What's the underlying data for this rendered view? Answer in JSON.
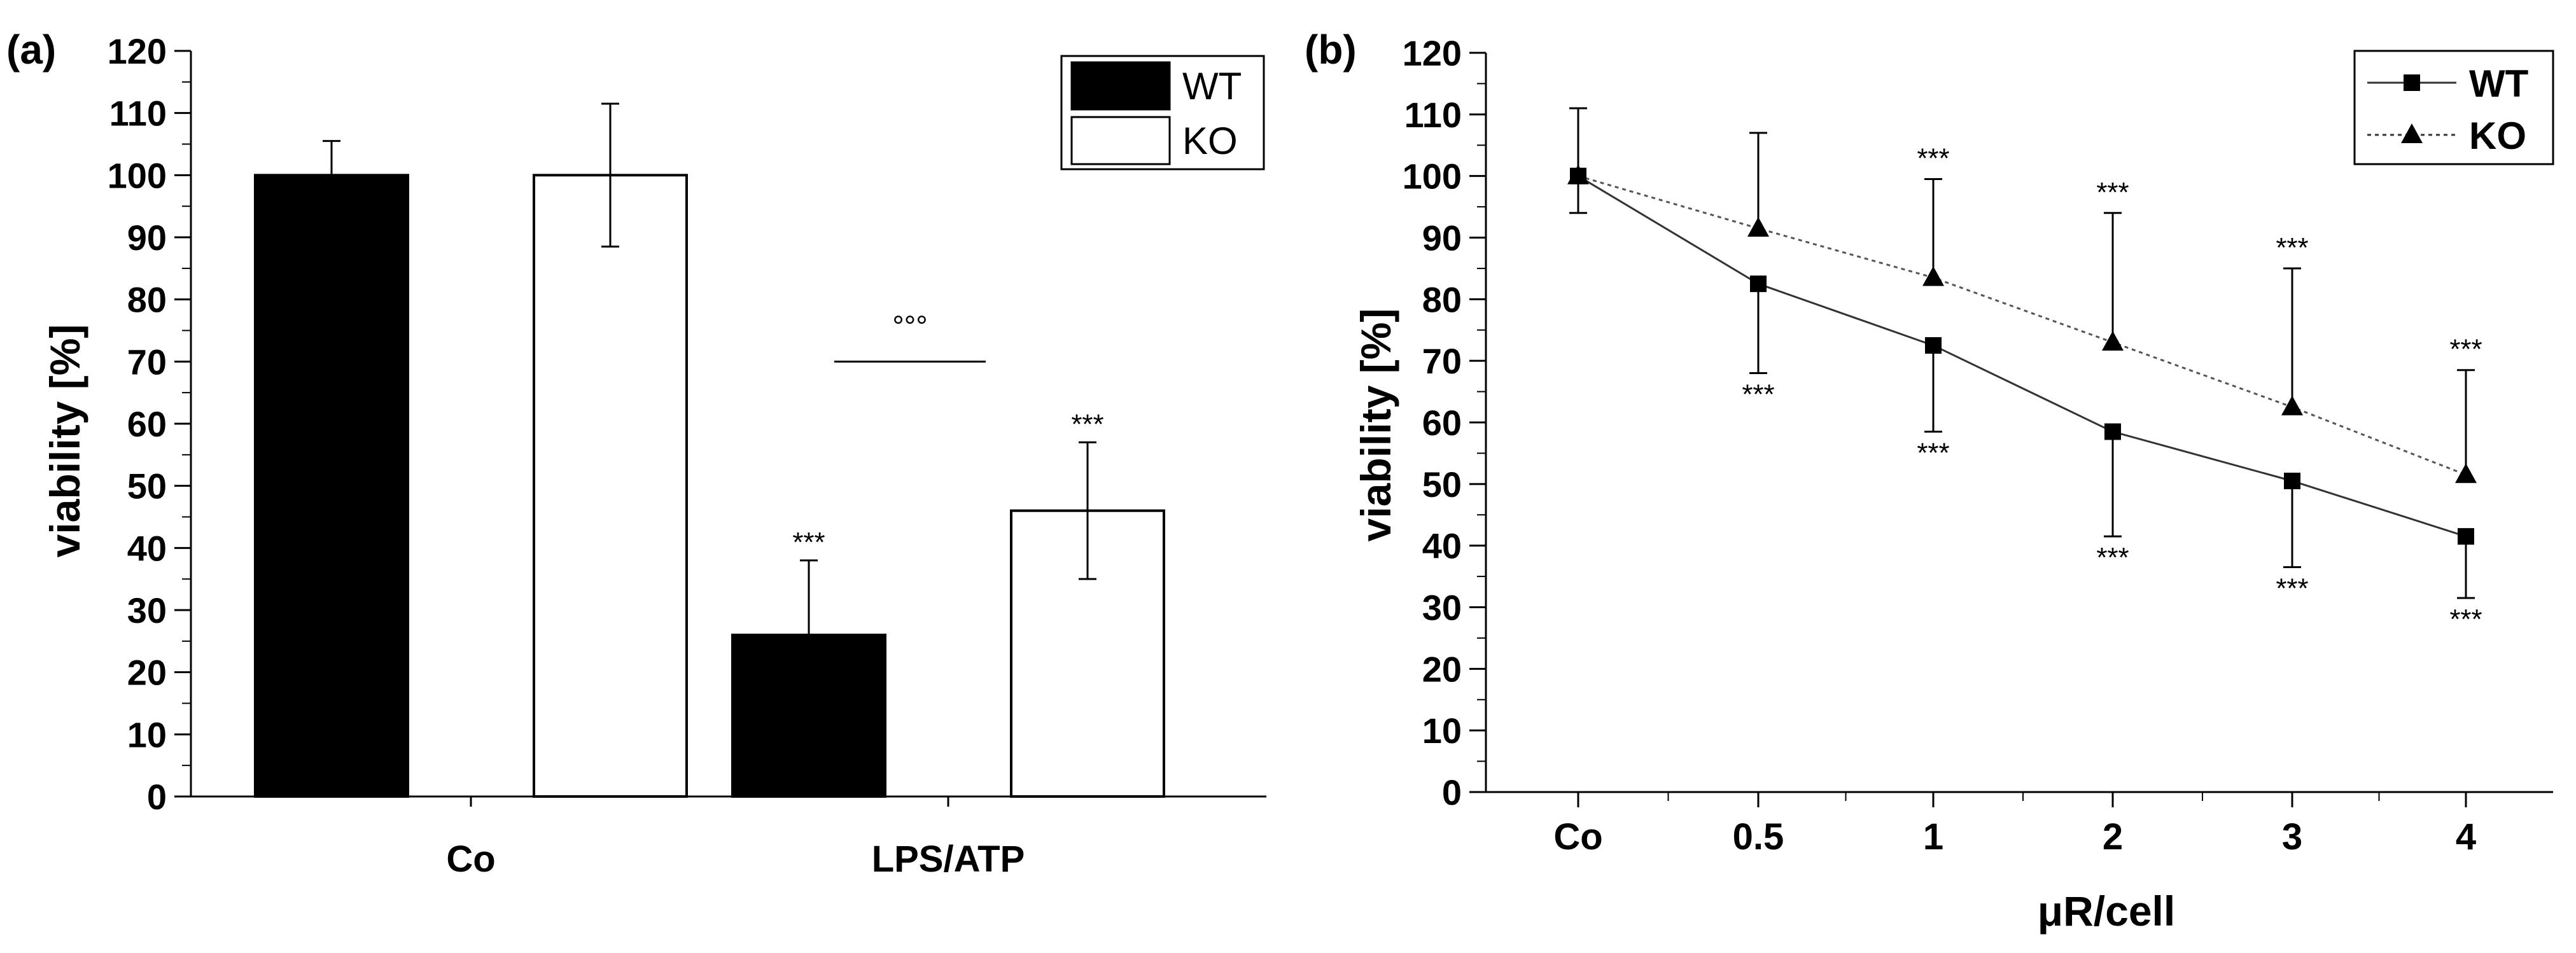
{
  "chart_data": [
    {
      "panel_label": "(a)",
      "type": "bar",
      "categories": [
        "Co",
        "LPS/ATP"
      ],
      "series": [
        {
          "name": "WT",
          "values": [
            100,
            26
          ],
          "errors": [
            5.5,
            12
          ],
          "color": "#000000"
        },
        {
          "name": "KO",
          "values": [
            100,
            46
          ],
          "errors": [
            11.5,
            11
          ],
          "color": "#ffffff"
        }
      ],
      "ylabel": "viability [%]",
      "xlabel": "",
      "ylim": [
        0,
        120
      ],
      "yticks": [
        0,
        10,
        20,
        30,
        40,
        50,
        60,
        70,
        80,
        90,
        100,
        110,
        120
      ],
      "legend": {
        "position": "top-right",
        "entries": [
          "WT",
          "KO"
        ]
      },
      "annotations": [
        {
          "text": "***",
          "category": "LPS/ATP",
          "series": "WT",
          "placement": "above-error"
        },
        {
          "text": "***",
          "category": "LPS/ATP",
          "series": "KO",
          "placement": "above-error"
        },
        {
          "text": "°°°",
          "between": [
            "WT",
            "KO"
          ],
          "category": "LPS/ATP",
          "bracket_y": 70
        }
      ]
    },
    {
      "panel_label": "(b)",
      "type": "line",
      "x": [
        "Co",
        "0.5",
        "1",
        "2",
        "3",
        "4"
      ],
      "series": [
        {
          "name": "WT",
          "marker": "square",
          "line": "solid",
          "values": [
            100,
            82.5,
            72.5,
            58.5,
            50.5,
            41.5
          ],
          "errors": [
            6,
            14.5,
            14,
            17,
            14,
            10
          ],
          "error_direction": "down"
        },
        {
          "name": "KO",
          "marker": "triangle",
          "line": "dashed",
          "values": [
            100,
            91.5,
            83.5,
            73,
            62.5,
            51.5
          ],
          "errors": [
            11,
            15.5,
            16,
            21,
            22.5,
            17
          ],
          "error_direction": "up"
        }
      ],
      "xlabel": "μR/cell",
      "ylabel": "viability [%]",
      "ylim": [
        0,
        120
      ],
      "yticks": [
        0,
        10,
        20,
        30,
        40,
        50,
        60,
        70,
        80,
        90,
        100,
        110,
        120
      ],
      "legend": {
        "position": "top-right",
        "entries": [
          "WT",
          "KO"
        ]
      },
      "annotations": [
        {
          "text": "***",
          "x": "0.5",
          "series": "WT",
          "placement": "below-error"
        },
        {
          "text": "***",
          "x": "1",
          "series": "KO",
          "placement": "above-error"
        },
        {
          "text": "***",
          "x": "1",
          "series": "WT",
          "placement": "below-error"
        },
        {
          "text": "***",
          "x": "2",
          "series": "KO",
          "placement": "above-error"
        },
        {
          "text": "***",
          "x": "2",
          "series": "WT",
          "placement": "below-error"
        },
        {
          "text": "***",
          "x": "3",
          "series": "KO",
          "placement": "above-error"
        },
        {
          "text": "***",
          "x": "3",
          "series": "WT",
          "placement": "below-error"
        },
        {
          "text": "***",
          "x": "4",
          "series": "KO",
          "placement": "above-error"
        },
        {
          "text": "***",
          "x": "4",
          "series": "WT",
          "placement": "below-error"
        }
      ]
    }
  ]
}
